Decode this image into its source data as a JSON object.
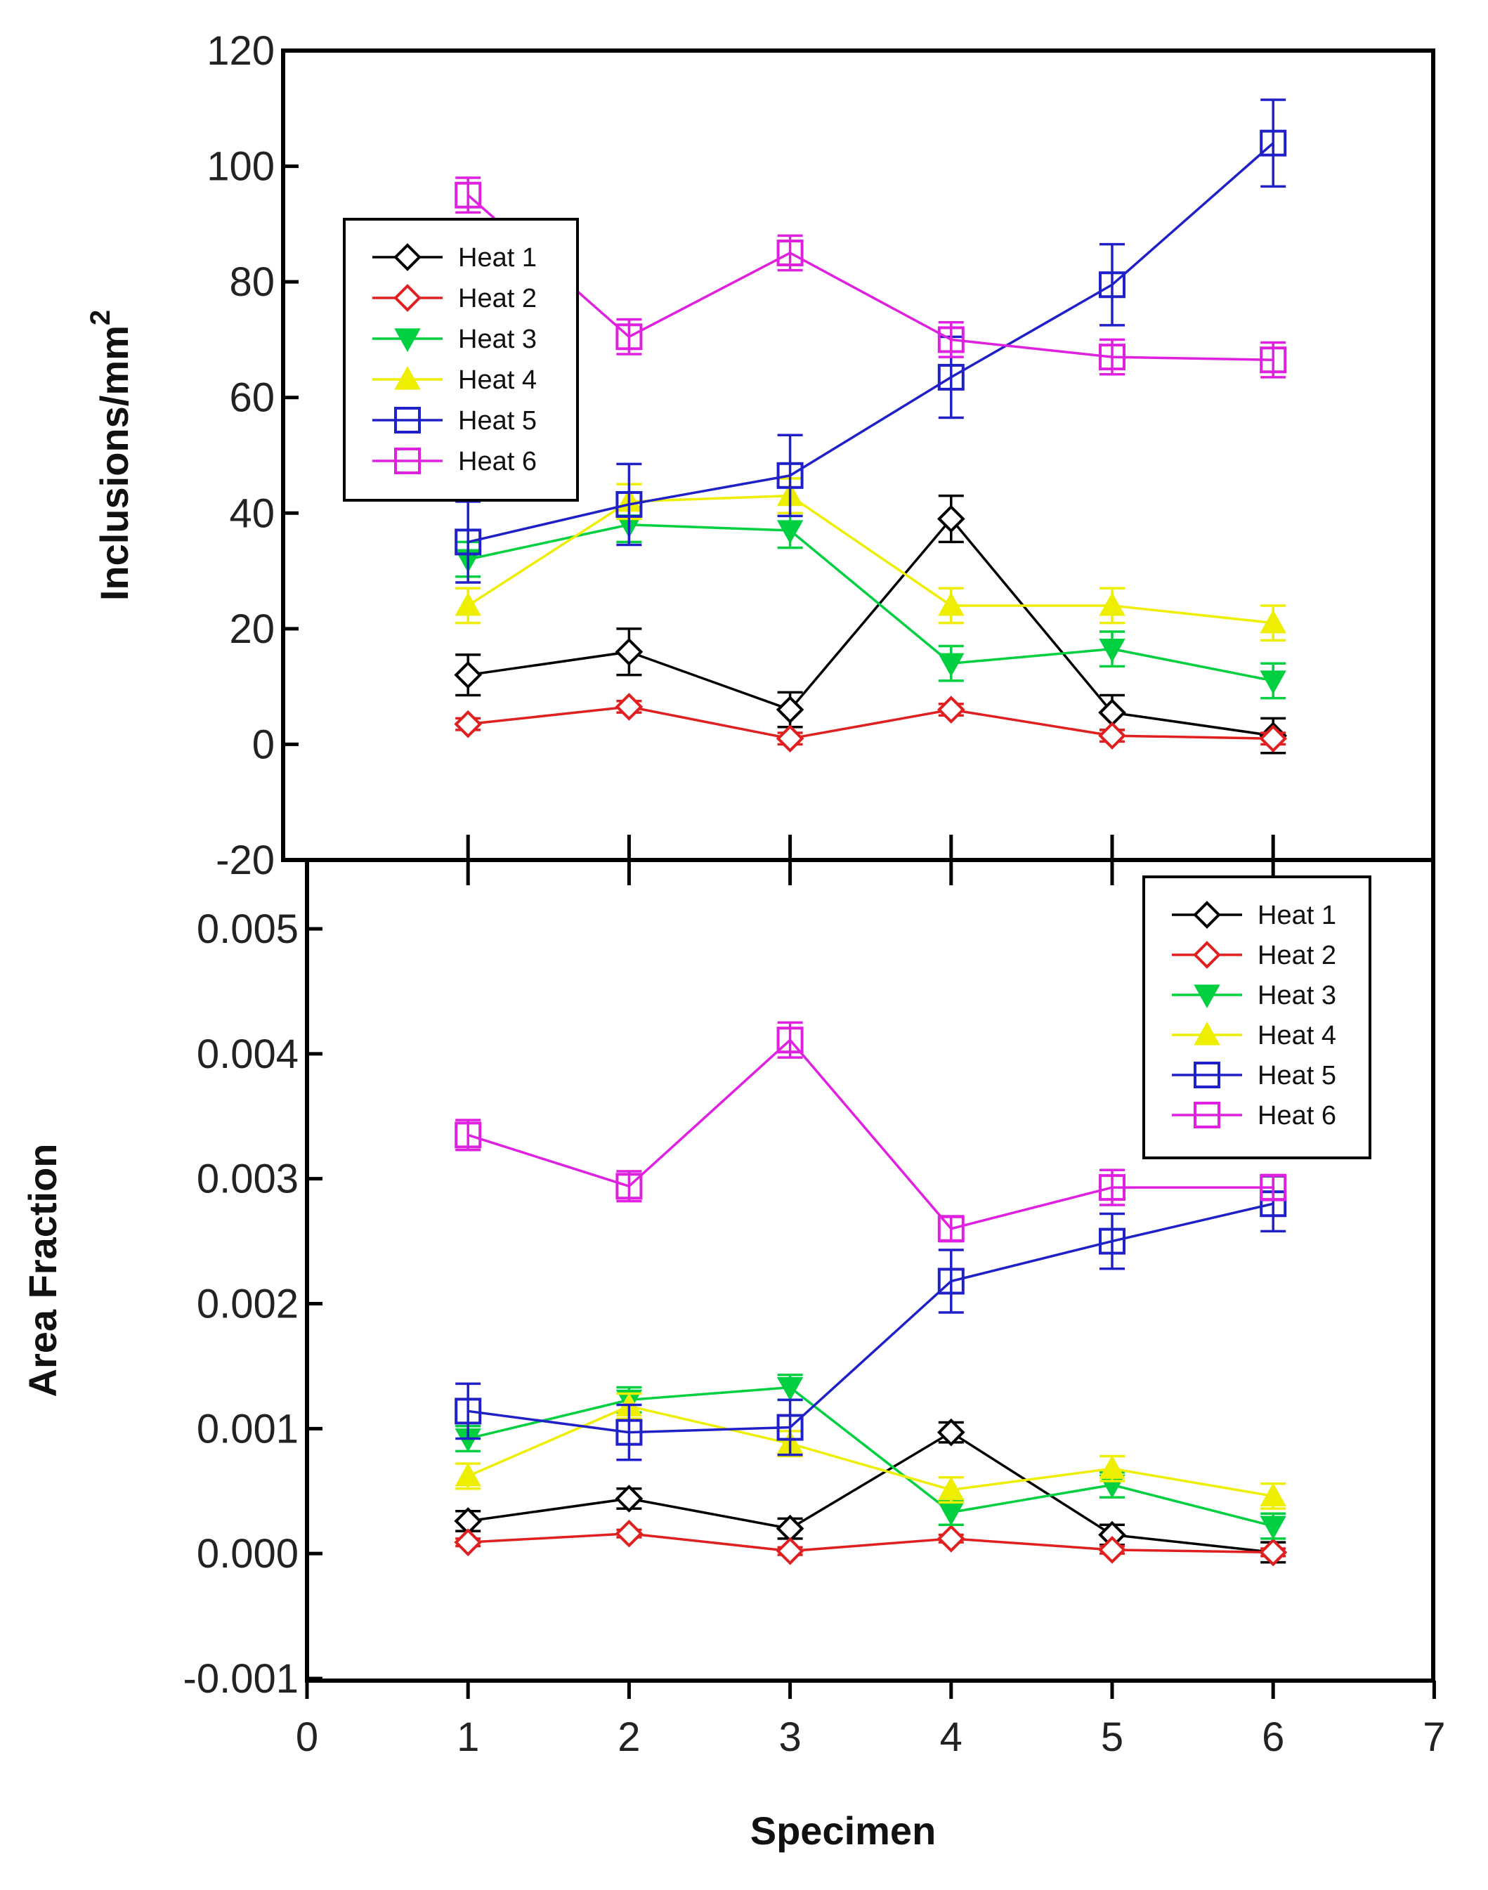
{
  "chart_data": [
    {
      "type": "line",
      "panel": "top",
      "title": "",
      "xlabel": "",
      "ylabel": "Inclusions/mm",
      "ylabel_superscript": "2",
      "xlim": [
        0,
        7
      ],
      "ylim": [
        -20,
        120
      ],
      "yticks": [
        -20,
        0,
        20,
        40,
        60,
        80,
        100,
        120
      ],
      "yticklabels": [
        "-20",
        "0",
        "20",
        "40",
        "60",
        "80",
        "100",
        "120"
      ],
      "x": [
        1,
        2,
        3,
        4,
        5,
        6
      ],
      "legend_position": "upper-left",
      "series": [
        {
          "name": "Heat 1",
          "color": "#000000",
          "marker": "diamond-open",
          "values": [
            12,
            16,
            6,
            39,
            5.5,
            1.5
          ],
          "errors": [
            3.5,
            4,
            3,
            4,
            3,
            3
          ]
        },
        {
          "name": "Heat 2",
          "color": "#e02020",
          "marker": "diamond-open",
          "values": [
            3.5,
            6.5,
            1,
            6,
            1.5,
            1
          ],
          "errors": [
            1,
            1,
            1,
            1,
            1,
            1
          ]
        },
        {
          "name": "Heat 3",
          "color": "#00d040",
          "marker": "triangle-down",
          "values": [
            32,
            38,
            37,
            14,
            16.5,
            11
          ],
          "errors": [
            3,
            3,
            3,
            3,
            3,
            3
          ]
        },
        {
          "name": "Heat 4",
          "color": "#eeee00",
          "marker": "triangle-up",
          "values": [
            24,
            42,
            43,
            24,
            24,
            21
          ],
          "errors": [
            3,
            3,
            3,
            3,
            3,
            3
          ]
        },
        {
          "name": "Heat 5",
          "color": "#2020c8",
          "marker": "square-open",
          "values": [
            35,
            41.5,
            46.5,
            63.5,
            79.5,
            104
          ],
          "errors": [
            7,
            7,
            7,
            7,
            7,
            7.5
          ]
        },
        {
          "name": "Heat 6",
          "color": "#e020e0",
          "marker": "square-open",
          "values": [
            95,
            70.5,
            85,
            70,
            67,
            66.5
          ],
          "errors": [
            3,
            3,
            3,
            3,
            3,
            3
          ]
        }
      ]
    },
    {
      "type": "line",
      "panel": "bottom",
      "title": "",
      "xlabel": "Specimen",
      "ylabel": "Area Fraction",
      "xlim": [
        0,
        7
      ],
      "ylim": [
        -0.001,
        0.0055
      ],
      "xticks": [
        0,
        1,
        2,
        3,
        4,
        5,
        6,
        7
      ],
      "xticklabels": [
        "0",
        "1",
        "2",
        "3",
        "4",
        "5",
        "6",
        "7"
      ],
      "yticks": [
        -0.001,
        0.0,
        0.001,
        0.002,
        0.003,
        0.004,
        0.005
      ],
      "yticklabels": [
        "-0.001",
        "0.000",
        "0.001",
        "0.002",
        "0.003",
        "0.004",
        "0.005"
      ],
      "x": [
        1,
        2,
        3,
        4,
        5,
        6
      ],
      "legend_position": "upper-right",
      "series": [
        {
          "name": "Heat 1",
          "color": "#000000",
          "marker": "diamond-open",
          "values": [
            0.00026,
            0.00044,
            0.0002,
            0.00097,
            0.00015,
            1e-05
          ],
          "errors": [
            8e-05,
            8e-05,
            8e-05,
            8e-05,
            8e-05,
            8e-05
          ]
        },
        {
          "name": "Heat 2",
          "color": "#e02020",
          "marker": "diamond-open",
          "values": [
            9e-05,
            0.00016,
            2e-05,
            0.00012,
            3e-05,
            1e-05
          ],
          "errors": [
            3e-05,
            3e-05,
            3e-05,
            3e-05,
            3e-05,
            3e-05
          ]
        },
        {
          "name": "Heat 3",
          "color": "#00d040",
          "marker": "triangle-down",
          "values": [
            0.00092,
            0.00123,
            0.00133,
            0.00033,
            0.00055,
            0.00022
          ],
          "errors": [
            0.0001,
            0.0001,
            0.0001,
            0.0001,
            0.0001,
            0.0001
          ]
        },
        {
          "name": "Heat 4",
          "color": "#eeee00",
          "marker": "triangle-up",
          "values": [
            0.00062,
            0.00118,
            0.00088,
            0.00051,
            0.00068,
            0.00046
          ],
          "errors": [
            0.0001,
            0.0001,
            0.0001,
            0.0001,
            0.0001,
            0.0001
          ]
        },
        {
          "name": "Heat 5",
          "color": "#2020c8",
          "marker": "square-open",
          "values": [
            0.00114,
            0.00097,
            0.00101,
            0.00218,
            0.0025,
            0.0028
          ],
          "errors": [
            0.00022,
            0.00022,
            0.00022,
            0.00025,
            0.00022,
            0.00022
          ]
        },
        {
          "name": "Heat 6",
          "color": "#e020e0",
          "marker": "square-open",
          "values": [
            0.00335,
            0.00294,
            0.00411,
            0.0026,
            0.00293,
            0.00293
          ],
          "errors": [
            0.00012,
            0.00012,
            0.00014,
            0.0001,
            0.00014,
            0.0001
          ]
        }
      ]
    }
  ]
}
